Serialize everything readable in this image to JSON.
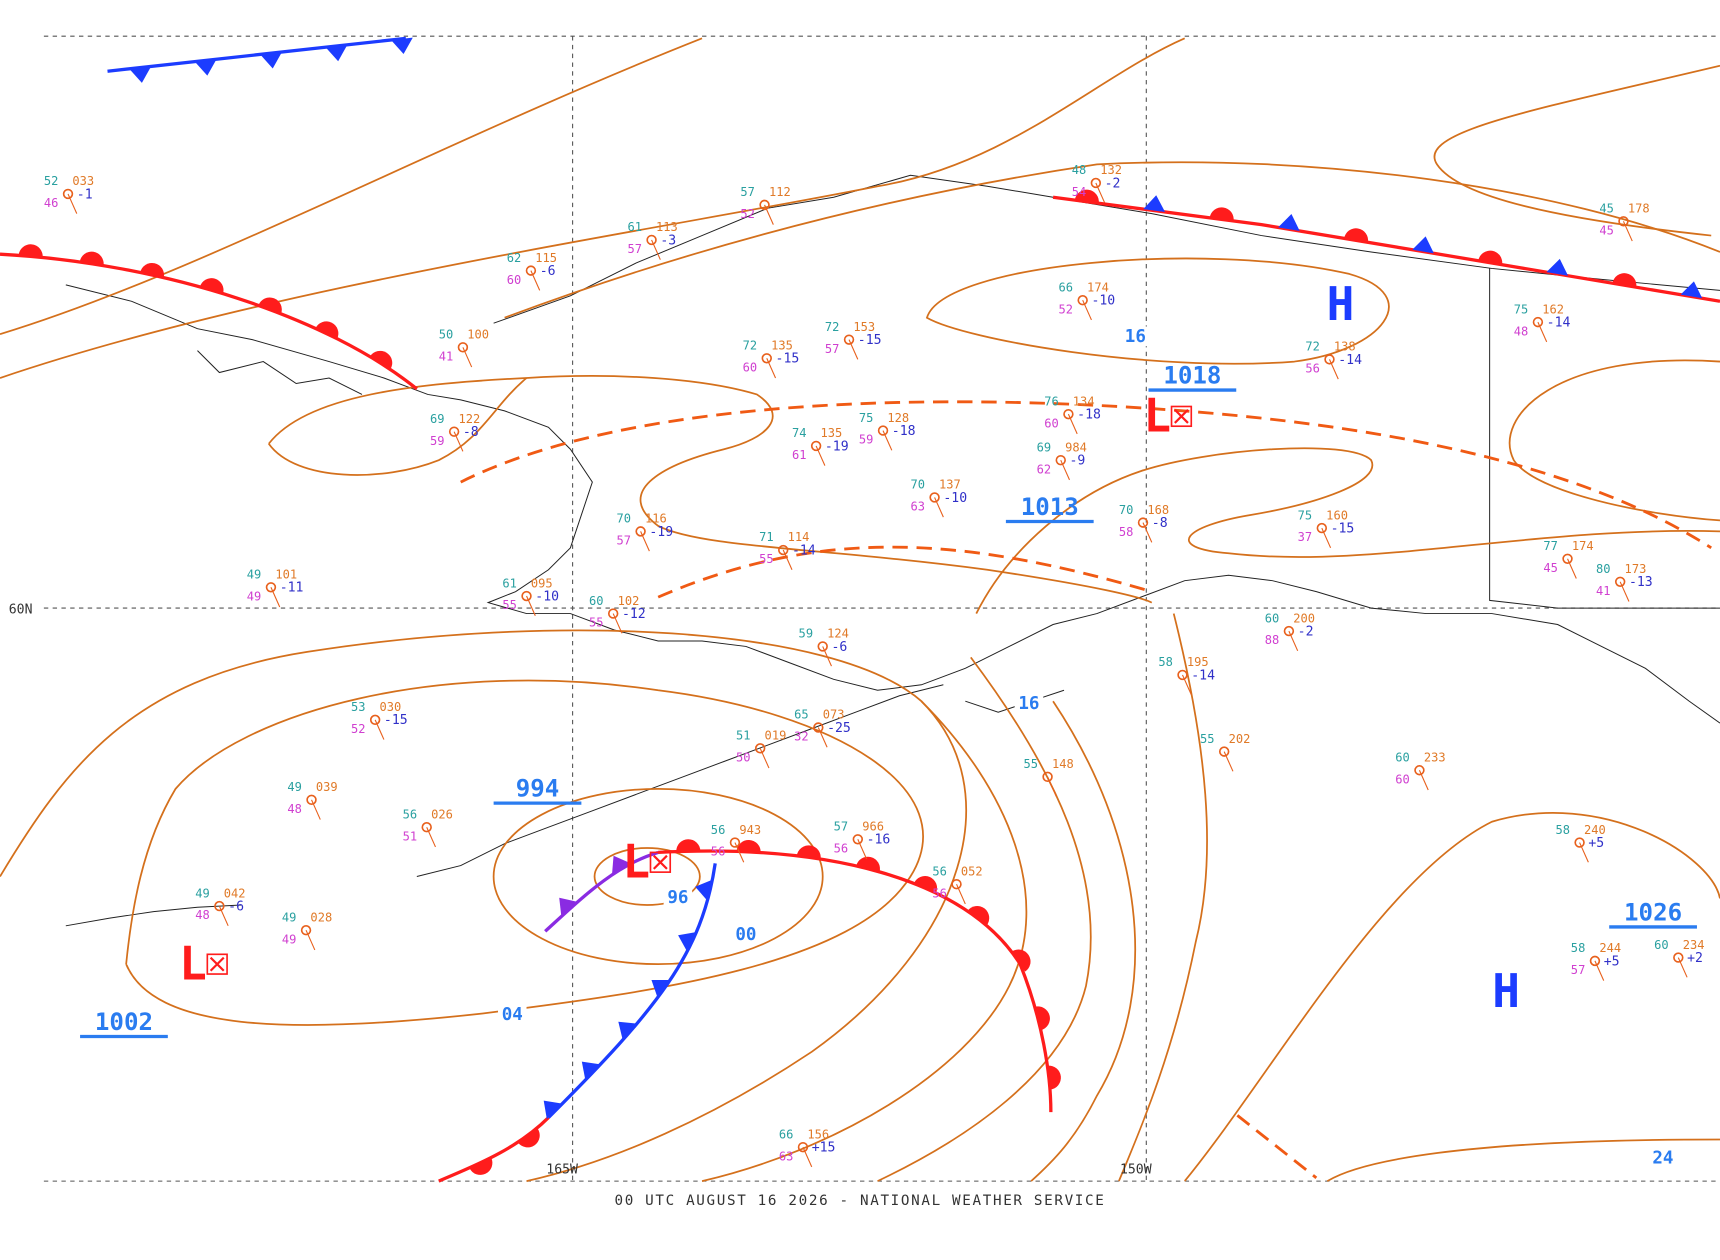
{
  "footer": "00 UTC AUGUST 16 2026 - NATIONAL WEATHER SERVICE",
  "grid_labels": {
    "lat": [
      "60N"
    ],
    "lon": [
      "165W",
      "150W"
    ]
  },
  "centers": [
    "H",
    "H",
    "L",
    "L",
    "L"
  ],
  "pressure_labels": [
    "1018",
    "1013",
    "994",
    "1002",
    "1026"
  ],
  "isobar_labels": [
    "16",
    "16",
    "96",
    "00",
    "04",
    "24"
  ],
  "stations": [
    {
      "temp": "52",
      "pressure": "033",
      "dew": "46",
      "change": "-1"
    },
    {
      "temp": "50",
      "pressure": "100",
      "dew": "41"
    },
    {
      "temp": "57",
      "pressure": "112",
      "dew": "52"
    },
    {
      "temp": "61",
      "pressure": "113",
      "dew": "57",
      "change": "-3"
    },
    {
      "temp": "62",
      "pressure": "115",
      "dew": "60",
      "change": "-6"
    },
    {
      "temp": "48",
      "pressure": "132",
      "dew": "54",
      "change": "-2"
    },
    {
      "temp": "72",
      "pressure": "135",
      "dew": "60",
      "change": "-15"
    },
    {
      "temp": "72",
      "pressure": "153",
      "dew": "57",
      "change": "-15"
    },
    {
      "temp": "66",
      "pressure": "174",
      "dew": "52",
      "change": "-10"
    },
    {
      "temp": "45",
      "pressure": "178",
      "dew": "45"
    },
    {
      "temp": "75",
      "pressure": "162",
      "dew": "48",
      "change": "-14"
    },
    {
      "temp": "72",
      "pressure": "138",
      "dew": "56",
      "change": "-14"
    },
    {
      "temp": "69",
      "pressure": "122",
      "dew": "59",
      "change": "-8"
    },
    {
      "temp": "74",
      "pressure": "135",
      "dew": "61",
      "change": "-19"
    },
    {
      "temp": "75",
      "pressure": "128",
      "dew": "59",
      "change": "-18"
    },
    {
      "temp": "76",
      "pressure": "134",
      "dew": "60",
      "change": "-18"
    },
    {
      "temp": "69",
      "pressure": "984",
      "dew": "62",
      "change": "-9"
    },
    {
      "temp": "70",
      "pressure": "137",
      "dew": "63",
      "change": "-10"
    },
    {
      "temp": "70",
      "pressure": "168",
      "dew": "58",
      "change": "-8"
    },
    {
      "temp": "75",
      "pressure": "160",
      "dew": "37",
      "change": "-15"
    },
    {
      "temp": "77",
      "pressure": "174",
      "dew": "45"
    },
    {
      "temp": "80",
      "pressure": "173",
      "dew": "41",
      "change": "-13"
    },
    {
      "temp": "70",
      "pressure": "116",
      "dew": "57",
      "change": "-19"
    },
    {
      "temp": "71",
      "pressure": "114",
      "dew": "55",
      "change": "-14"
    },
    {
      "temp": "49",
      "pressure": "101",
      "dew": "49",
      "change": "-11"
    },
    {
      "temp": "61",
      "pressure": "095",
      "dew": "55",
      "change": "-10"
    },
    {
      "temp": "60",
      "pressure": "102",
      "dew": "55",
      "change": "-12"
    },
    {
      "temp": "53",
      "pressure": "030",
      "dew": "52",
      "change": "-15"
    },
    {
      "temp": "49",
      "pressure": "039",
      "dew": "48"
    },
    {
      "temp": "56",
      "pressure": "026",
      "dew": "51"
    },
    {
      "temp": "56",
      "pressure": "943",
      "dew": "56"
    },
    {
      "temp": "57",
      "pressure": "966",
      "dew": "56",
      "change": "-16"
    },
    {
      "temp": "56",
      "pressure": "052",
      "dew": "56"
    },
    {
      "temp": "55",
      "pressure": "202"
    },
    {
      "temp": "55",
      "pressure": "148"
    },
    {
      "temp": "60",
      "pressure": "233",
      "dew": "60"
    },
    {
      "temp": "58",
      "pressure": "240",
      "change": "+5"
    },
    {
      "temp": "58",
      "pressure": "244",
      "dew": "57",
      "change": "+5"
    },
    {
      "temp": "60",
      "pressure": "234",
      "change": "+2"
    },
    {
      "temp": "66",
      "pressure": "156",
      "dew": "63",
      "change": "+15"
    },
    {
      "temp": "49",
      "pressure": "042",
      "dew": "48",
      "change": "-6"
    },
    {
      "temp": "49",
      "pressure": "028",
      "dew": "49"
    },
    {
      "temp": "58",
      "pressure": "195",
      "change": "-14"
    },
    {
      "temp": "60",
      "pressure": "200",
      "dew": "88",
      "change": "-2"
    },
    {
      "temp": "59",
      "pressure": "124",
      "change": "-6"
    },
    {
      "temp": "65",
      "pressure": "073",
      "dew": "32",
      "change": "-25"
    },
    {
      "temp": "51",
      "pressure": "019",
      "dew": "50"
    }
  ]
}
